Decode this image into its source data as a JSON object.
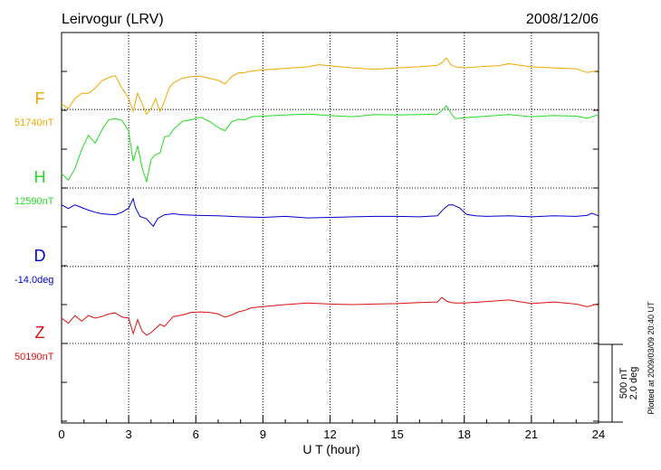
{
  "chart_data": {
    "type": "line",
    "title": "Leirvogur (LRV)",
    "date": "2008/12/06",
    "xlabel": "U T (hour)",
    "xlim": [
      0,
      24
    ],
    "xticks": [
      "0",
      "3",
      "6",
      "9",
      "12",
      "15",
      "18",
      "21",
      "24"
    ],
    "grid": true,
    "scale_bar": {
      "line1": "500 nT",
      "line2": "2.0 deg",
      "value_nT": 500,
      "value_deg": 2.0
    },
    "plotted_note": "Plotted at 2009/03/09 20:40 UT",
    "series": [
      {
        "name": "F",
        "baseline_label": "51740nT",
        "baseline_value": 51740,
        "unit": "nT",
        "color": "#f0a800",
        "x": [
          0,
          0.3,
          0.6,
          0.9,
          1.2,
          1.5,
          1.8,
          2.1,
          2.4,
          2.7,
          3.0,
          3.2,
          3.4,
          3.6,
          3.8,
          4.0,
          4.2,
          4.4,
          4.6,
          4.8,
          5.0,
          5.4,
          5.8,
          6.2,
          6.6,
          7.0,
          7.3,
          7.6,
          7.9,
          8.2,
          8.5,
          9,
          10,
          11,
          11.5,
          12,
          13,
          14,
          15,
          16,
          16.8,
          17.0,
          17.2,
          17.4,
          17.6,
          18,
          19,
          19.5,
          20,
          20.5,
          21,
          22,
          23,
          23.5,
          24
        ],
        "y": [
          -1370,
          -1470,
          -1270,
          -1170,
          -1170,
          -1070,
          -930,
          -870,
          -830,
          -1070,
          -1270,
          -1520,
          -1170,
          -1370,
          -1570,
          -1470,
          -1270,
          -1520,
          -1320,
          -1070,
          -970,
          -880,
          -850,
          -840,
          -880,
          -920,
          -990,
          -850,
          -780,
          -770,
          -740,
          -720,
          -690,
          -660,
          -620,
          -640,
          -680,
          -710,
          -680,
          -660,
          -630,
          -580,
          -490,
          -620,
          -660,
          -680,
          -650,
          -640,
          -600,
          -630,
          -660,
          -680,
          -700,
          -770,
          -730
        ]
      },
      {
        "name": "H",
        "baseline_label": "12590nT",
        "baseline_value": 12590,
        "unit": "nT",
        "color": "#22dd22",
        "x": [
          0,
          0.3,
          0.6,
          0.9,
          1.2,
          1.5,
          1.8,
          2.1,
          2.4,
          2.7,
          3.0,
          3.2,
          3.4,
          3.6,
          3.8,
          4.0,
          4.2,
          4.4,
          4.6,
          4.8,
          5.0,
          5.4,
          5.8,
          6.2,
          6.6,
          7.0,
          7.3,
          7.6,
          7.9,
          8.2,
          8.5,
          9,
          10,
          11,
          12,
          13,
          14,
          15,
          16,
          16.8,
          17.0,
          17.2,
          17.4,
          17.6,
          18,
          19,
          20,
          21,
          22,
          23,
          23.5,
          24
        ],
        "y": [
          -2720,
          -2840,
          -2620,
          -2250,
          -1980,
          -2130,
          -1880,
          -1680,
          -1660,
          -1690,
          -1900,
          -2480,
          -2180,
          -2600,
          -2870,
          -2450,
          -2350,
          -2320,
          -2010,
          -1990,
          -1870,
          -1710,
          -1680,
          -1630,
          -1710,
          -1830,
          -1890,
          -1720,
          -1670,
          -1680,
          -1620,
          -1610,
          -1590,
          -1570,
          -1600,
          -1620,
          -1580,
          -1590,
          -1580,
          -1570,
          -1500,
          -1410,
          -1550,
          -1660,
          -1640,
          -1610,
          -1580,
          -1620,
          -1600,
          -1610,
          -1650,
          -1580
        ]
      },
      {
        "name": "D",
        "baseline_label": "-14.0deg",
        "baseline_value": -14.0,
        "unit": "deg",
        "color": "#0000cc",
        "x": [
          0,
          0.3,
          0.6,
          0.9,
          1.2,
          1.5,
          1.8,
          2.1,
          2.4,
          2.7,
          3.0,
          3.2,
          3.3,
          3.5,
          3.8,
          4.1,
          4.3,
          4.6,
          5.0,
          5.4,
          6.0,
          7.0,
          8.0,
          9.0,
          10,
          11,
          12,
          13,
          14,
          15,
          16,
          16.8,
          17.1,
          17.3,
          17.5,
          17.8,
          18.1,
          18.5,
          19,
          20,
          21,
          22,
          23,
          23.5,
          23.7,
          24
        ],
        "y": [
          -3320,
          -3390,
          -3320,
          -3370,
          -3420,
          -3460,
          -3490,
          -3500,
          -3510,
          -3460,
          -3380,
          -3200,
          -3370,
          -3540,
          -3590,
          -3730,
          -3580,
          -3510,
          -3490,
          -3510,
          -3520,
          -3530,
          -3550,
          -3560,
          -3540,
          -3570,
          -3560,
          -3550,
          -3540,
          -3540,
          -3550,
          -3530,
          -3390,
          -3320,
          -3320,
          -3380,
          -3500,
          -3530,
          -3540,
          -3530,
          -3550,
          -3530,
          -3540,
          -3520,
          -3480,
          -3530
        ]
      },
      {
        "name": "Z",
        "baseline_label": "50190nT",
        "baseline_value": 50190,
        "unit": "nT",
        "color": "#dd1111",
        "x": [
          0,
          0.3,
          0.6,
          0.9,
          1.2,
          1.5,
          1.8,
          2.1,
          2.4,
          2.7,
          3.0,
          3.2,
          3.4,
          3.6,
          3.8,
          4.0,
          4.2,
          4.4,
          4.6,
          4.8,
          5.0,
          5.4,
          5.8,
          6.2,
          6.6,
          7.0,
          7.3,
          7.6,
          7.9,
          8.2,
          8.5,
          9,
          10,
          11,
          12,
          13,
          14,
          15,
          16,
          16.8,
          17.0,
          17.2,
          17.4,
          17.6,
          18,
          19,
          20,
          21,
          22,
          23,
          23.5,
          24
        ],
        "y": [
          -5500,
          -5600,
          -5450,
          -5560,
          -5450,
          -5500,
          -5470,
          -5420,
          -5400,
          -5480,
          -5500,
          -5800,
          -5530,
          -5750,
          -5830,
          -5780,
          -5700,
          -5620,
          -5660,
          -5560,
          -5470,
          -5440,
          -5390,
          -5380,
          -5390,
          -5420,
          -5480,
          -5440,
          -5380,
          -5350,
          -5300,
          -5280,
          -5240,
          -5210,
          -5230,
          -5240,
          -5230,
          -5220,
          -5200,
          -5190,
          -5100,
          -5170,
          -5200,
          -5210,
          -5210,
          -5180,
          -5150,
          -5220,
          -5190,
          -5230,
          -5280,
          -5220
        ]
      }
    ]
  }
}
